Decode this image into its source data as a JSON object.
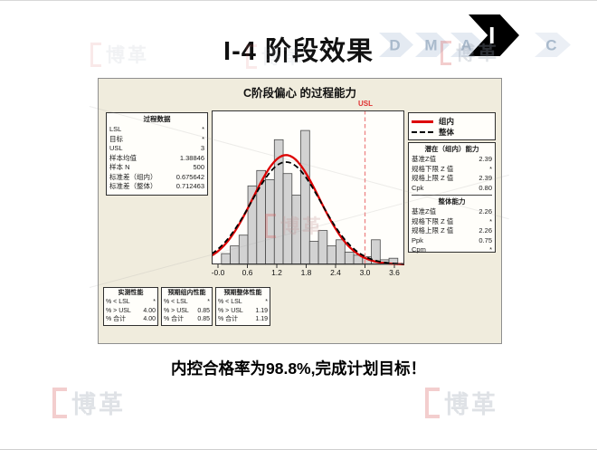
{
  "slide": {
    "title": "I-4 阶段效果",
    "caption": "内控合格率为98.8%,完成计划目标！",
    "watermark_text": "博革"
  },
  "dmaic": {
    "steps": [
      "D",
      "M",
      "A",
      "I",
      "C"
    ],
    "active_step": "I",
    "active_color": "#000000",
    "inactive_fill": "#e4eaf2",
    "inactive_letter_color": "#a9bacc"
  },
  "chart_data": {
    "type": "bar",
    "subtype": "process-capability-histogram",
    "title": "C阶段偏心  的过程能力",
    "xlabel": "",
    "ylabel": "",
    "x_ticks": [
      "-0.0",
      "0.6",
      "1.2",
      "1.8",
      "2.4",
      "3.0",
      "3.6"
    ],
    "xlim": [
      -0.13,
      3.8
    ],
    "grid": false,
    "bins": {
      "x_start": 0.07,
      "bin_width": 0.18,
      "counts_rel": [
        0.07,
        0.12,
        0.19,
        0.51,
        0.61,
        0.55,
        0.81,
        0.59,
        0.45,
        0.87,
        0.15,
        0.22,
        0.12,
        0.16,
        0.08,
        0.06,
        0.05,
        0.16,
        0.03,
        0.04
      ],
      "bar_fill": "#d2d2d2",
      "bar_stroke": "#4a4a4a"
    },
    "curves": [
      {
        "name": "组内",
        "style": "solid",
        "color": "#dd0000",
        "mean": 1.38846,
        "stdev": 0.675642,
        "peak_rel": 0.71
      },
      {
        "name": "整体",
        "style": "dashed",
        "color": "#000000",
        "mean": 1.38846,
        "stdev": 0.712463,
        "peak_rel": 0.665
      }
    ],
    "usl_line": {
      "label": "USL",
      "value": 3,
      "color": "#ee8585"
    },
    "process_data": {
      "title": "过程数据",
      "rows": [
        [
          "LSL",
          "*"
        ],
        [
          "目标",
          "*"
        ],
        [
          "USL",
          "3"
        ],
        [
          "样本均值",
          "1.38846"
        ],
        [
          "样本 N",
          "500"
        ],
        [
          "标准差（组内）",
          "0.675642"
        ],
        [
          "标准差（整体）",
          "0.712463"
        ]
      ]
    },
    "legend": {
      "items": [
        {
          "label": "组内",
          "color": "#dd0000",
          "dashed": false
        },
        {
          "label": "整体",
          "color": "#000000",
          "dashed": true
        }
      ]
    },
    "capability": {
      "sections": [
        {
          "title": "潜在（组内）能力",
          "rows": [
            [
              "基准Z值",
              "2.39"
            ],
            [
              "规格下限 Z 值",
              "*"
            ],
            [
              "规格上限 Z 值",
              "2.39"
            ],
            [
              "Cpk",
              "0.80"
            ]
          ]
        },
        {
          "title": "整体能力",
          "rows": [
            [
              "基准Z值",
              "2.26"
            ],
            [
              "规格下限 Z 值",
              "*"
            ],
            [
              "规格上限 Z 值",
              "2.26"
            ],
            [
              "Ppk",
              "0.75"
            ],
            [
              "Cpm",
              "*"
            ]
          ]
        }
      ]
    },
    "performance": [
      {
        "title": "实测性能",
        "rows": [
          [
            "% < LSL",
            "*"
          ],
          [
            "% > USL",
            "4.00"
          ],
          [
            "% 合计",
            "4.00"
          ]
        ]
      },
      {
        "title": "预期组内性能",
        "rows": [
          [
            "% < LSL",
            "*"
          ],
          [
            "% > USL",
            "0.85"
          ],
          [
            "% 合计",
            "0.85"
          ]
        ]
      },
      {
        "title": "预期整体性能",
        "rows": [
          [
            "% < LSL",
            "*"
          ],
          [
            "% > USL",
            "1.19"
          ],
          [
            "% 合计",
            "1.19"
          ]
        ]
      }
    ]
  }
}
